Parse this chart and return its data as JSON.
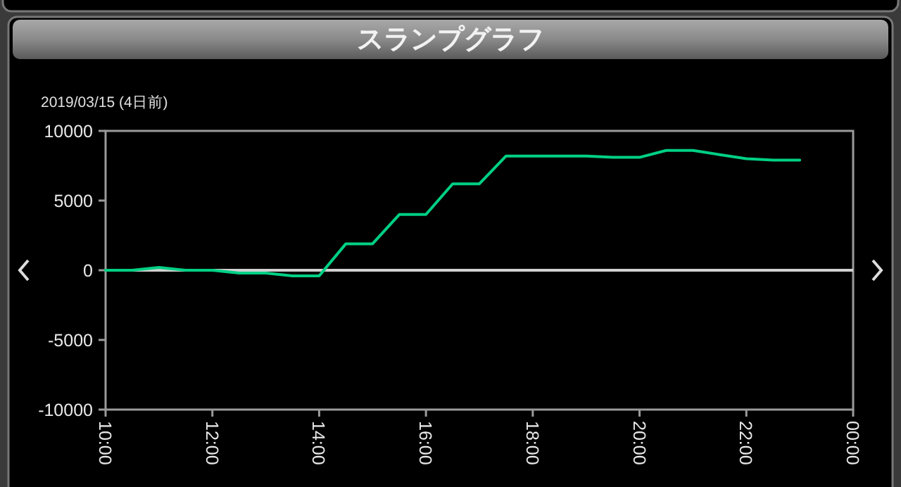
{
  "chart_data": {
    "type": "line",
    "title": "スランプグラフ",
    "subtitle": "2019/03/15 (4日前)",
    "x": [
      10,
      10.5,
      11,
      11.5,
      12,
      12.5,
      13,
      13.5,
      14,
      14.5,
      15,
      15.5,
      16,
      16.5,
      17,
      17.5,
      18,
      18.5,
      19,
      19.5,
      20,
      20.5,
      21,
      21.5,
      22,
      22.5,
      23
    ],
    "series": [
      {
        "color": "#00d084",
        "values": [
          0,
          0,
          200,
          0,
          0,
          -200,
          -200,
          -400,
          -400,
          1900,
          1900,
          4000,
          4000,
          6200,
          6200,
          8200,
          8200,
          8200,
          8200,
          8100,
          8100,
          8600,
          8600,
          8300,
          8000,
          7900,
          7900
        ]
      }
    ],
    "xlim": [
      10,
      24
    ],
    "xticks": [
      {
        "value": 10,
        "label": "10:00"
      },
      {
        "value": 12,
        "label": "12:00"
      },
      {
        "value": 14,
        "label": "14:00"
      },
      {
        "value": 16,
        "label": "16:00"
      },
      {
        "value": 18,
        "label": "18:00"
      },
      {
        "value": 20,
        "label": "20:00"
      },
      {
        "value": 22,
        "label": "22:00"
      },
      {
        "value": 24,
        "label": "00:00"
      }
    ],
    "ylim": [
      -10000,
      10000
    ],
    "yticks": [
      -10000,
      -5000,
      0,
      5000,
      10000
    ],
    "ref_lines": [
      {
        "axis": "y",
        "value": 0,
        "color": "#d0d0d0"
      }
    ]
  }
}
